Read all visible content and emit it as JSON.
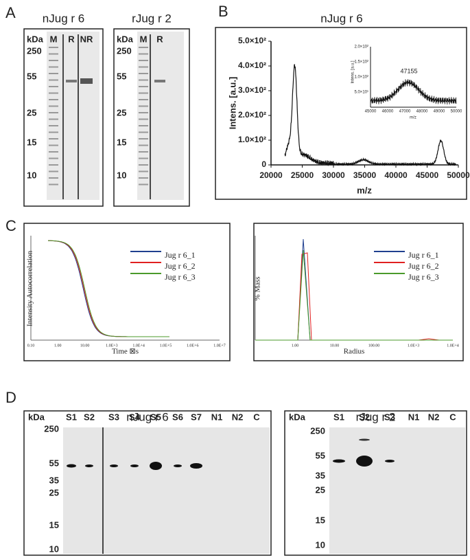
{
  "panel_a": {
    "label": "A",
    "gels": [
      {
        "title": "nJug r 6",
        "unit": "kDa",
        "lanes": [
          "M",
          "R",
          "NR"
        ],
        "markers": [
          "250",
          "55",
          "25",
          "15",
          "10"
        ]
      },
      {
        "title": "rJug r 2",
        "unit": "kDa",
        "lanes": [
          "M",
          "R"
        ],
        "markers": [
          "250",
          "55",
          "25",
          "15",
          "10"
        ]
      }
    ]
  },
  "panel_b": {
    "label": "B",
    "title": "nJug r 6",
    "y_label": "Intens. [a.u.]",
    "x_label": "m/z",
    "yticks": [
      "0",
      "1.0×10²",
      "2.0×10²",
      "3.0×10²",
      "4.0×10²",
      "5.0×10²"
    ],
    "xticks": [
      "20000",
      "25000",
      "30000",
      "35000",
      "40000",
      "45000",
      "50000"
    ],
    "inset": {
      "y_label": "Intens. [a.u.]",
      "x_label": "m/z",
      "peak_label": "47155",
      "yticks": [
        "5.0×10¹",
        "1.0×10²",
        "1.5×10²",
        "2.0×10²"
      ],
      "xticks": [
        "45000",
        "46000",
        "47000",
        "48000",
        "49000",
        "50000"
      ]
    }
  },
  "panel_c": {
    "label": "C",
    "plots": [
      {
        "y_label": "Intensity Autocorrelation",
        "x_label": "Time ⊠s",
        "legend": [
          "Jug r 6_1",
          "Jug r 6_2",
          "Jug r 6_3"
        ],
        "xticks": [
          "0.10",
          "1.00",
          "10.00",
          "1.0E+3",
          "1.0E+4",
          "1.0E+5",
          "1.0E+6",
          "1.0E+7"
        ]
      },
      {
        "y_label": "% Mass",
        "x_label": "Radius",
        "legend": [
          "Jug r 6_1",
          "Jug r 6_2",
          "Jug r 6_3"
        ],
        "xticks": [
          "1.00",
          "10.00",
          "100.00",
          "1.0E+3",
          "1.0E+4"
        ]
      }
    ]
  },
  "panel_d": {
    "label": "D",
    "gels": [
      {
        "title": "nJug r 6",
        "unit": "kDa",
        "lanes": [
          "S1",
          "S2",
          "S3",
          "S4",
          "S5",
          "S6",
          "S7",
          "N1",
          "N2",
          "C"
        ],
        "markers": [
          "250",
          "55",
          "35",
          "25",
          "15",
          "10"
        ]
      },
      {
        "title": "rJug r 2",
        "unit": "kDa",
        "lanes": [
          "S1",
          "S2",
          "S3",
          "N1",
          "N2",
          "C"
        ],
        "markers": [
          "250",
          "55",
          "35",
          "25",
          "15",
          "10"
        ]
      }
    ]
  }
}
